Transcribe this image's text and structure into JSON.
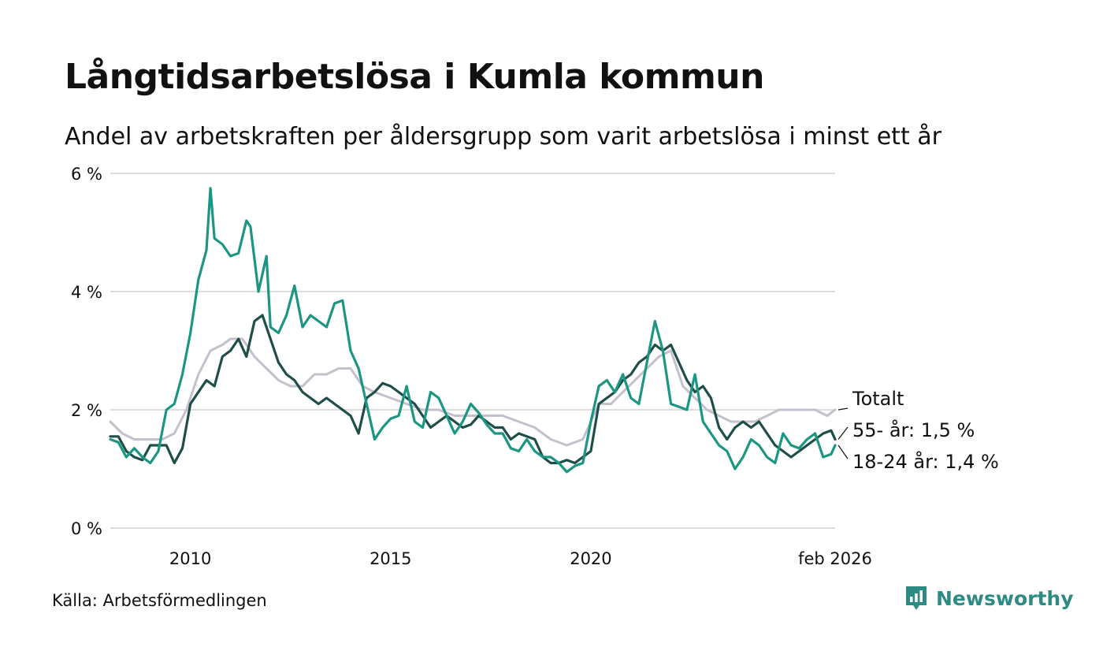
{
  "header": {
    "title": "Långtidsarbetslösa i Kumla kommun",
    "subtitle": "Andel av arbetskraften per åldersgrupp som varit arbetslösa i minst ett år"
  },
  "footer": {
    "source": "Källa: Arbetsförmedlingen",
    "brand": "Newsworthy"
  },
  "colors": {
    "total": "#c4c0cc",
    "age55": "#1f4d48",
    "age1824": "#1b9683",
    "grid": "#dddddd",
    "brand": "#2e8b84"
  },
  "chart_data": {
    "type": "line",
    "title": "Långtidsarbetslösa i Kumla kommun",
    "xlabel": "",
    "ylabel": "",
    "ylim": [
      0,
      6
    ],
    "xlim": [
      2008.0,
      2026.1
    ],
    "yticks": [
      {
        "value": 0,
        "label": "0 %"
      },
      {
        "value": 2,
        "label": "2 %"
      },
      {
        "value": 4,
        "label": "4 %"
      },
      {
        "value": 6,
        "label": "6 %"
      }
    ],
    "xticks": [
      {
        "value": 2010,
        "label": "2010"
      },
      {
        "value": 2015,
        "label": "2015"
      },
      {
        "value": 2020,
        "label": "2020"
      },
      {
        "value": 2026.1,
        "label": "feb 2026"
      }
    ],
    "grid": true,
    "series": [
      {
        "name": "Totalt",
        "label": "Totalt",
        "color": "#c4c0cc",
        "x": [
          2008.0,
          2008.3,
          2008.6,
          2009.0,
          2009.3,
          2009.6,
          2009.9,
          2010.2,
          2010.5,
          2010.8,
          2011.0,
          2011.3,
          2011.6,
          2011.9,
          2012.2,
          2012.5,
          2012.8,
          2013.1,
          2013.4,
          2013.7,
          2014.0,
          2014.3,
          2014.6,
          2015.0,
          2015.4,
          2015.8,
          2016.2,
          2016.6,
          2017.0,
          2017.4,
          2017.8,
          2018.2,
          2018.6,
          2019.0,
          2019.4,
          2019.8,
          2020.2,
          2020.5,
          2020.8,
          2021.1,
          2021.4,
          2021.7,
          2022.0,
          2022.3,
          2022.6,
          2022.9,
          2023.2,
          2023.5,
          2023.8,
          2024.1,
          2024.4,
          2024.7,
          2025.0,
          2025.3,
          2025.6,
          2025.9,
          2026.1
        ],
        "values": [
          1.8,
          1.6,
          1.5,
          1.5,
          1.5,
          1.6,
          2.0,
          2.6,
          3.0,
          3.1,
          3.2,
          3.2,
          2.9,
          2.7,
          2.5,
          2.4,
          2.4,
          2.6,
          2.6,
          2.7,
          2.7,
          2.4,
          2.3,
          2.2,
          2.1,
          2.0,
          2.0,
          1.9,
          1.9,
          1.9,
          1.9,
          1.8,
          1.7,
          1.5,
          1.4,
          1.5,
          2.1,
          2.1,
          2.3,
          2.5,
          2.7,
          2.9,
          3.0,
          2.4,
          2.2,
          2.0,
          1.9,
          1.8,
          1.8,
          1.8,
          1.9,
          2.0,
          2.0,
          2.0,
          2.0,
          1.9,
          2.0
        ]
      },
      {
        "name": "55- år",
        "label": "55- år: 1,5 %",
        "color": "#1f4d48",
        "x": [
          2008.0,
          2008.2,
          2008.4,
          2008.6,
          2008.8,
          2009.0,
          2009.2,
          2009.4,
          2009.6,
          2009.8,
          2010.0,
          2010.2,
          2010.4,
          2010.6,
          2010.8,
          2011.0,
          2011.2,
          2011.4,
          2011.6,
          2011.8,
          2012.0,
          2012.2,
          2012.4,
          2012.6,
          2012.8,
          2013.0,
          2013.2,
          2013.4,
          2013.6,
          2013.8,
          2014.0,
          2014.2,
          2014.4,
          2014.6,
          2014.8,
          2015.0,
          2015.2,
          2015.4,
          2015.6,
          2015.8,
          2016.0,
          2016.2,
          2016.4,
          2016.6,
          2016.8,
          2017.0,
          2017.2,
          2017.4,
          2017.6,
          2017.8,
          2018.0,
          2018.2,
          2018.4,
          2018.6,
          2018.8,
          2019.0,
          2019.2,
          2019.4,
          2019.6,
          2019.8,
          2020.0,
          2020.2,
          2020.4,
          2020.6,
          2020.8,
          2021.0,
          2021.2,
          2021.4,
          2021.6,
          2021.8,
          2022.0,
          2022.2,
          2022.4,
          2022.6,
          2022.8,
          2023.0,
          2023.2,
          2023.4,
          2023.6,
          2023.8,
          2024.0,
          2024.2,
          2024.4,
          2024.6,
          2024.8,
          2025.0,
          2025.2,
          2025.4,
          2025.6,
          2025.8,
          2026.0,
          2026.1
        ],
        "values": [
          1.55,
          1.55,
          1.3,
          1.2,
          1.15,
          1.4,
          1.4,
          1.4,
          1.1,
          1.35,
          2.1,
          2.3,
          2.5,
          2.4,
          2.9,
          3.0,
          3.2,
          2.9,
          3.5,
          3.6,
          3.2,
          2.8,
          2.6,
          2.5,
          2.3,
          2.2,
          2.1,
          2.2,
          2.1,
          2.0,
          1.9,
          1.6,
          2.2,
          2.3,
          2.45,
          2.4,
          2.3,
          2.2,
          2.1,
          1.9,
          1.7,
          1.8,
          1.9,
          1.8,
          1.7,
          1.75,
          1.9,
          1.8,
          1.7,
          1.7,
          1.5,
          1.6,
          1.55,
          1.5,
          1.2,
          1.1,
          1.1,
          1.15,
          1.1,
          1.2,
          1.3,
          2.1,
          2.2,
          2.3,
          2.5,
          2.6,
          2.8,
          2.9,
          3.1,
          3.0,
          3.1,
          2.8,
          2.5,
          2.3,
          2.4,
          2.2,
          1.7,
          1.5,
          1.7,
          1.8,
          1.7,
          1.8,
          1.6,
          1.4,
          1.3,
          1.2,
          1.3,
          1.4,
          1.5,
          1.6,
          1.65,
          1.5
        ]
      },
      {
        "name": "18-24 år",
        "label": "18-24 år: 1,4 %",
        "color": "#1b9683",
        "x": [
          2008.0,
          2008.2,
          2008.4,
          2008.6,
          2008.8,
          2009.0,
          2009.2,
          2009.4,
          2009.6,
          2009.8,
          2010.0,
          2010.2,
          2010.4,
          2010.5,
          2010.6,
          2010.8,
          2011.0,
          2011.2,
          2011.4,
          2011.5,
          2011.7,
          2011.9,
          2012.0,
          2012.2,
          2012.4,
          2012.6,
          2012.8,
          2013.0,
          2013.2,
          2013.4,
          2013.6,
          2013.8,
          2014.0,
          2014.2,
          2014.4,
          2014.6,
          2014.8,
          2015.0,
          2015.2,
          2015.4,
          2015.6,
          2015.8,
          2016.0,
          2016.2,
          2016.4,
          2016.6,
          2016.8,
          2017.0,
          2017.2,
          2017.4,
          2017.6,
          2017.8,
          2018.0,
          2018.2,
          2018.4,
          2018.6,
          2018.8,
          2019.0,
          2019.2,
          2019.4,
          2019.6,
          2019.8,
          2020.0,
          2020.2,
          2020.4,
          2020.6,
          2020.8,
          2021.0,
          2021.2,
          2021.4,
          2021.6,
          2021.8,
          2022.0,
          2022.2,
          2022.4,
          2022.6,
          2022.8,
          2023.0,
          2023.2,
          2023.4,
          2023.6,
          2023.8,
          2024.0,
          2024.2,
          2024.4,
          2024.6,
          2024.8,
          2025.0,
          2025.2,
          2025.4,
          2025.6,
          2025.8,
          2026.0,
          2026.1
        ],
        "values": [
          1.5,
          1.45,
          1.2,
          1.35,
          1.2,
          1.1,
          1.3,
          2.0,
          2.1,
          2.6,
          3.3,
          4.2,
          4.7,
          5.75,
          4.9,
          4.8,
          4.6,
          4.65,
          5.2,
          5.1,
          4.0,
          4.6,
          3.4,
          3.3,
          3.6,
          4.1,
          3.4,
          3.6,
          3.5,
          3.4,
          3.8,
          3.85,
          3.0,
          2.7,
          2.1,
          1.5,
          1.7,
          1.85,
          1.9,
          2.4,
          1.8,
          1.7,
          2.3,
          2.2,
          1.9,
          1.6,
          1.8,
          2.1,
          1.95,
          1.75,
          1.6,
          1.6,
          1.35,
          1.3,
          1.5,
          1.3,
          1.2,
          1.2,
          1.1,
          0.95,
          1.05,
          1.1,
          1.8,
          2.4,
          2.5,
          2.3,
          2.6,
          2.2,
          2.1,
          2.8,
          3.5,
          3.0,
          2.1,
          2.05,
          2.0,
          2.6,
          1.8,
          1.6,
          1.4,
          1.3,
          1.0,
          1.2,
          1.5,
          1.4,
          1.2,
          1.1,
          1.6,
          1.4,
          1.35,
          1.5,
          1.6,
          1.2,
          1.25,
          1.4
        ]
      }
    ]
  }
}
